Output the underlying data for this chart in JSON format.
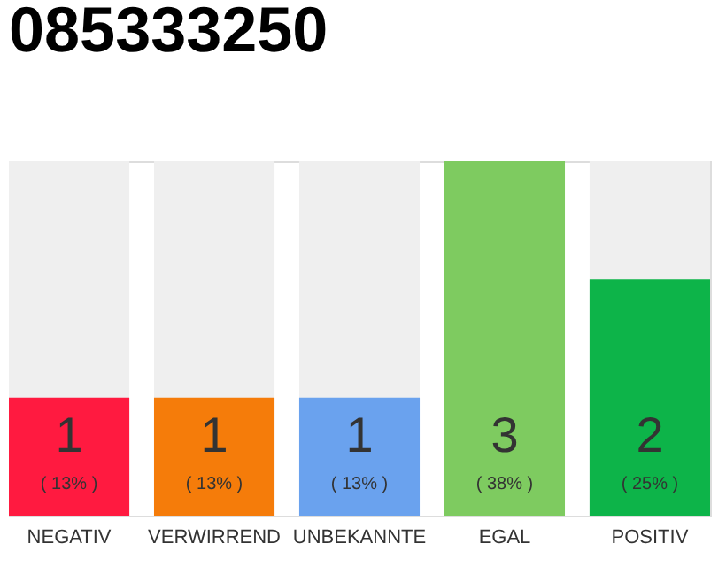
{
  "chart_data": {
    "type": "bar",
    "title": "085333250",
    "categories": [
      "NEGATIV",
      "VERWIRREND",
      "UNBEKANNTE",
      "EGAL",
      "POSITIV"
    ],
    "values": [
      1,
      1,
      1,
      3,
      2
    ],
    "colors": [
      "#ff1a40",
      "#f57c0a",
      "#6aa2ee",
      "#7ecb60",
      "#0db449"
    ],
    "ylim": [
      0,
      3
    ],
    "data_labels": true,
    "annotations": [
      "( 13% )",
      "( 13% )",
      "( 13% )",
      "( 38% )",
      "( 25% )"
    ]
  }
}
